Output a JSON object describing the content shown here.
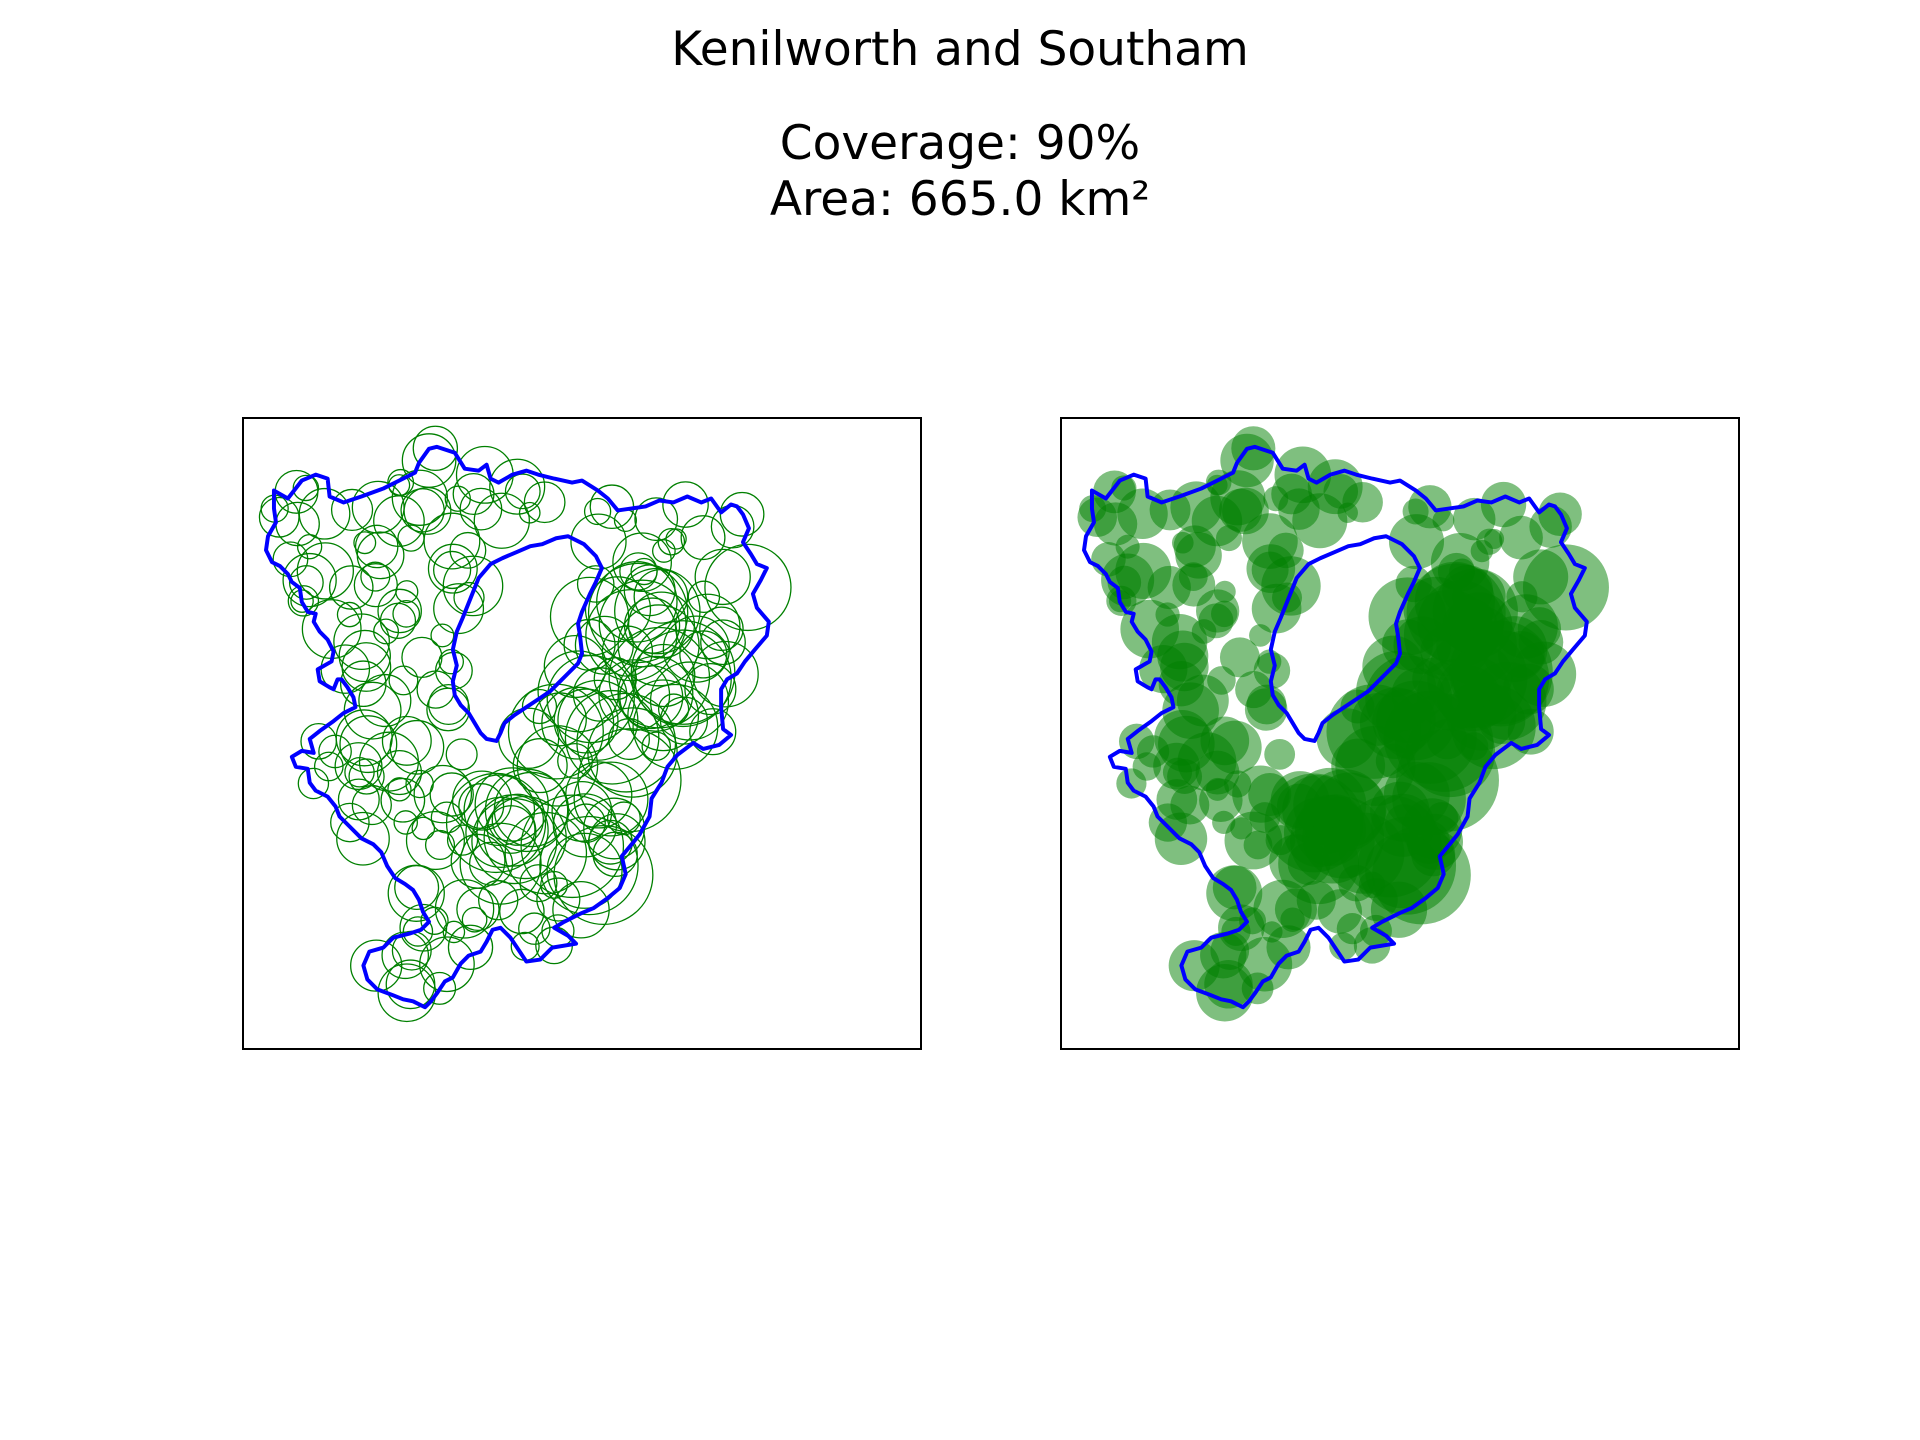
{
  "figure": {
    "title": "Kenilworth and Southam",
    "coverage_text": "Coverage: 90%",
    "area_text": "Area: 665.0 km²"
  },
  "colors": {
    "boundary": "#0000ff",
    "circle_outline": "#008000",
    "circle_fill": "#008000",
    "frame": "#000000"
  },
  "panels": [
    {
      "id": "outline",
      "circle_style": "outline"
    },
    {
      "id": "filled",
      "circle_style": "filled"
    }
  ]
}
